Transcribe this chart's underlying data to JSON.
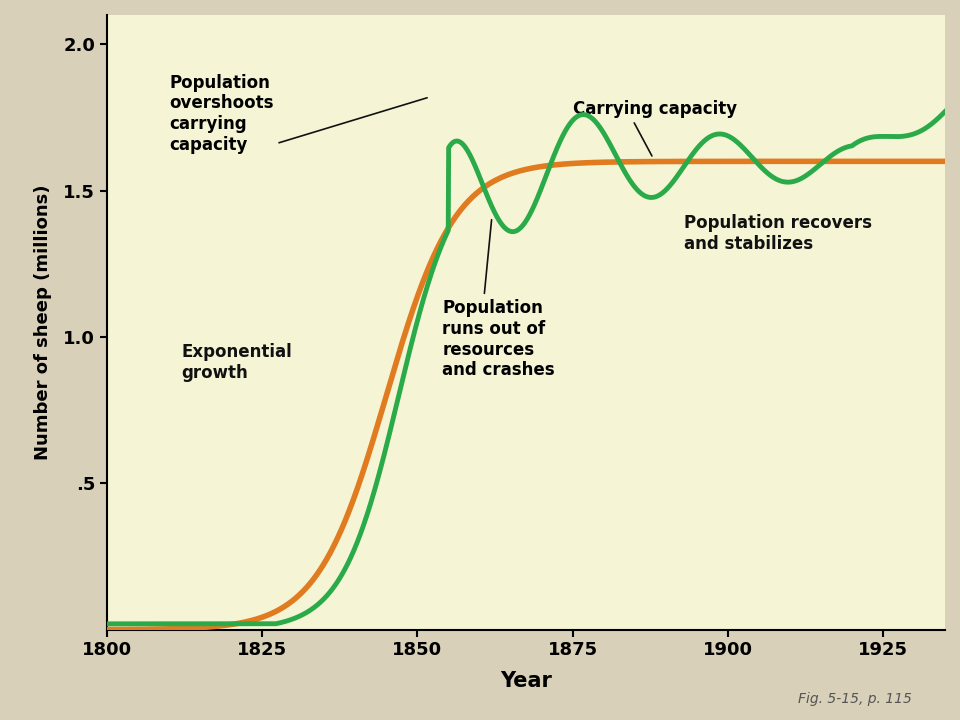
{
  "background_color": "#f5f5d5",
  "outer_background": "#d8d0b8",
  "xlim": [
    1800,
    1935
  ],
  "ylim": [
    0,
    2.1
  ],
  "xticks": [
    1800,
    1825,
    1850,
    1875,
    1900,
    1925
  ],
  "ytick_labels": [
    ".5",
    "1.0",
    "1.5",
    "2.0"
  ],
  "ytick_vals": [
    0.5,
    1.0,
    1.5,
    2.0
  ],
  "xlabel": "Year",
  "ylabel": "Number of sheep (millions)",
  "carrying_capacity": 1.6,
  "orange_color": "#E07B20",
  "green_color": "#2BAA4A",
  "annotation_color": "#111111",
  "axis_fontsize": 13,
  "tick_fontsize": 13,
  "ann_fontsize": 12,
  "caption": "Fig. 5-15, p. 115"
}
